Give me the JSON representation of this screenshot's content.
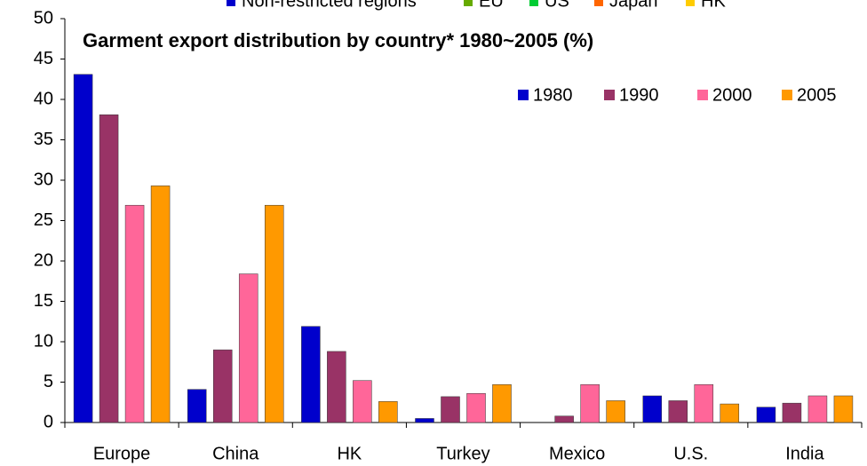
{
  "chart_data": {
    "type": "bar",
    "title": "Garment export distribution by country* 1980~2005 (%)",
    "top_legend": [
      {
        "name": "Non-restricted regions",
        "color": "#0000cc"
      },
      {
        "name": "EU",
        "color": "#66aa00"
      },
      {
        "name": "US",
        "color": "#00cc33"
      },
      {
        "name": "Japan",
        "color": "#ff6600"
      },
      {
        "name": "HK",
        "color": "#ffcc00"
      }
    ],
    "categories": [
      "Europe",
      "China",
      "HK",
      "Turkey",
      "Mexico",
      "U.S.",
      "India"
    ],
    "series": [
      {
        "name": "1980",
        "color": "#0000cc",
        "values": [
          43.1,
          4.1,
          11.9,
          0.5,
          null,
          3.3,
          1.9
        ]
      },
      {
        "name": "1990",
        "color": "#993366",
        "values": [
          38.1,
          9.0,
          8.8,
          3.2,
          0.8,
          2.7,
          2.4
        ]
      },
      {
        "name": "2000",
        "color": "#ff6699",
        "values": [
          26.9,
          18.4,
          5.2,
          3.6,
          4.7,
          4.7,
          3.3
        ]
      },
      {
        "name": "2005",
        "color": "#ff9900",
        "values": [
          29.3,
          26.9,
          2.6,
          4.7,
          2.7,
          2.3,
          3.3
        ]
      }
    ],
    "ylim": [
      0,
      50
    ],
    "yticks": [
      0,
      5,
      10,
      15,
      20,
      25,
      30,
      35,
      40,
      45,
      50
    ],
    "grid": false
  }
}
